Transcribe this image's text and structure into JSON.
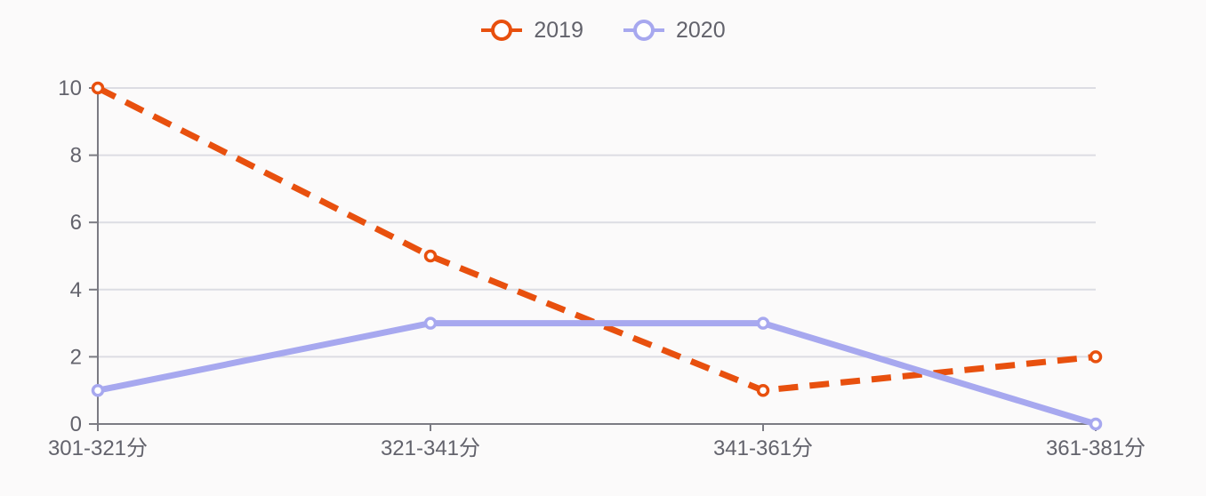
{
  "colors": {
    "background": "#fbfafa",
    "text": "#63636c",
    "grid": "#dcdde3",
    "axis": "#7b7b83",
    "marker_fill": "#ffffff",
    "series_2019": "#e8500e",
    "series_2020": "#a7a8ef"
  },
  "chart_data": {
    "type": "line",
    "categories": [
      "301-321分",
      "321-341分",
      "341-361分",
      "361-381分"
    ],
    "series": [
      {
        "name": "2019",
        "values": [
          10,
          5,
          1,
          2
        ],
        "color": "#e8500e",
        "line_style": "dashed"
      },
      {
        "name": "2020",
        "values": [
          1,
          3,
          3,
          0
        ],
        "color": "#a7a8ef",
        "line_style": "solid"
      }
    ],
    "title": "",
    "xlabel": "",
    "ylabel": "",
    "ylim": [
      0,
      10
    ],
    "yticks": [
      0,
      2,
      4,
      6,
      8,
      10
    ],
    "grid": true,
    "legend_position": "top-center"
  }
}
